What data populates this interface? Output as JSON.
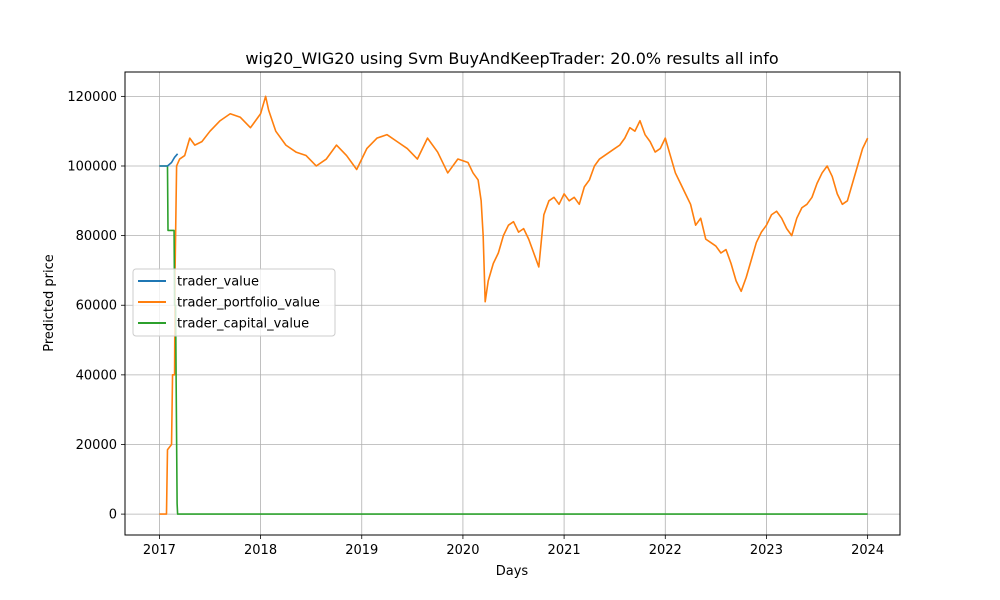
{
  "chart_data": {
    "type": "line",
    "title": "wig20_WIG20 using Svm BuyAndKeepTrader: 20.0% results all info",
    "xlabel": "Days",
    "ylabel": "Predicted price",
    "xlim": [
      2016.66,
      2024.32
    ],
    "ylim": [
      -6000,
      127000
    ],
    "x_ticks": [
      2017,
      2018,
      2019,
      2020,
      2021,
      2022,
      2023,
      2024
    ],
    "x_tick_labels": [
      "2017",
      "2018",
      "2019",
      "2020",
      "2021",
      "2022",
      "2023",
      "2024"
    ],
    "y_ticks": [
      0,
      20000,
      40000,
      60000,
      80000,
      100000,
      120000
    ],
    "y_tick_labels": [
      "0",
      "20000",
      "40000",
      "60000",
      "80000",
      "100000",
      "120000"
    ],
    "grid": true,
    "legend_position": "center-left",
    "series": [
      {
        "name": "trader_value",
        "color": "#1f77b4",
        "x": [
          2017.0,
          2017.08,
          2017.12,
          2017.15,
          2017.18
        ],
        "y": [
          100000,
          100000,
          101000,
          102500,
          103500
        ]
      },
      {
        "name": "trader_portfolio_value",
        "color": "#ff7f0e",
        "x": [
          2017.0,
          2017.07,
          2017.08,
          2017.12,
          2017.13,
          2017.15,
          2017.155,
          2017.17,
          2017.2,
          2017.25,
          2017.3,
          2017.35,
          2017.42,
          2017.5,
          2017.6,
          2017.7,
          2017.8,
          2017.9,
          2017.95,
          2018.0,
          2018.05,
          2018.08,
          2018.15,
          2018.25,
          2018.35,
          2018.45,
          2018.55,
          2018.65,
          2018.75,
          2018.85,
          2018.95,
          2019.05,
          2019.15,
          2019.25,
          2019.35,
          2019.45,
          2019.55,
          2019.65,
          2019.75,
          2019.85,
          2019.95,
          2020.05,
          2020.1,
          2020.15,
          2020.18,
          2020.2,
          2020.22,
          2020.25,
          2020.3,
          2020.35,
          2020.4,
          2020.45,
          2020.5,
          2020.55,
          2020.6,
          2020.65,
          2020.7,
          2020.75,
          2020.8,
          2020.85,
          2020.9,
          2020.95,
          2021.0,
          2021.05,
          2021.1,
          2021.15,
          2021.2,
          2021.25,
          2021.3,
          2021.35,
          2021.4,
          2021.45,
          2021.5,
          2021.55,
          2021.6,
          2021.65,
          2021.7,
          2021.75,
          2021.8,
          2021.85,
          2021.9,
          2021.95,
          2022.0,
          2022.05,
          2022.1,
          2022.15,
          2022.2,
          2022.25,
          2022.3,
          2022.35,
          2022.4,
          2022.45,
          2022.5,
          2022.55,
          2022.6,
          2022.65,
          2022.7,
          2022.75,
          2022.8,
          2022.85,
          2022.9,
          2022.95,
          2023.0,
          2023.05,
          2023.1,
          2023.15,
          2023.2,
          2023.25,
          2023.3,
          2023.35,
          2023.4,
          2023.45,
          2023.5,
          2023.55,
          2023.6,
          2023.65,
          2023.7,
          2023.75,
          2023.8,
          2023.85,
          2023.9,
          2023.95,
          2024.0
        ],
        "y": [
          0,
          0,
          18500,
          20000,
          40000,
          40000,
          70000,
          100000,
          102000,
          103000,
          108000,
          106000,
          107000,
          110000,
          113000,
          115000,
          114000,
          111000,
          113000,
          115000,
          120000,
          116000,
          110000,
          106000,
          104000,
          103000,
          100000,
          102000,
          106000,
          103000,
          99000,
          105000,
          108000,
          109000,
          107000,
          105000,
          102000,
          108000,
          104000,
          98000,
          102000,
          101000,
          98000,
          96000,
          90000,
          80000,
          61000,
          67000,
          72000,
          75000,
          80000,
          83000,
          84000,
          81000,
          82000,
          79000,
          75000,
          71000,
          86000,
          90000,
          91000,
          89000,
          92000,
          90000,
          91000,
          89000,
          94000,
          96000,
          100000,
          102000,
          103000,
          104000,
          105000,
          106000,
          108000,
          111000,
          110000,
          113000,
          109000,
          107000,
          104000,
          105000,
          108000,
          103000,
          98000,
          95000,
          92000,
          89000,
          83000,
          85000,
          79000,
          78000,
          77000,
          75000,
          76000,
          72000,
          67000,
          64000,
          68000,
          73000,
          78000,
          81000,
          83000,
          86000,
          87000,
          85000,
          82000,
          80000,
          85000,
          88000,
          89000,
          91000,
          95000,
          98000,
          100000,
          97000,
          92000,
          89000,
          90000,
          95000,
          100000,
          105000,
          108000
        ]
      },
      {
        "name": "trader_capital_value",
        "color": "#2ca02c",
        "x": [
          2017.0,
          2017.08,
          2017.085,
          2017.145,
          2017.15,
          2017.16,
          2017.165,
          2017.175,
          2017.18,
          2017.19,
          2017.5,
          2018.0,
          2019.0,
          2020.0,
          2021.0,
          2022.0,
          2023.0,
          2024.0
        ],
        "y": [
          100000,
          100000,
          81500,
          81500,
          60000,
          60000,
          40000,
          3000,
          0,
          0,
          0,
          0,
          0,
          0,
          0,
          0,
          0,
          0
        ]
      }
    ]
  }
}
